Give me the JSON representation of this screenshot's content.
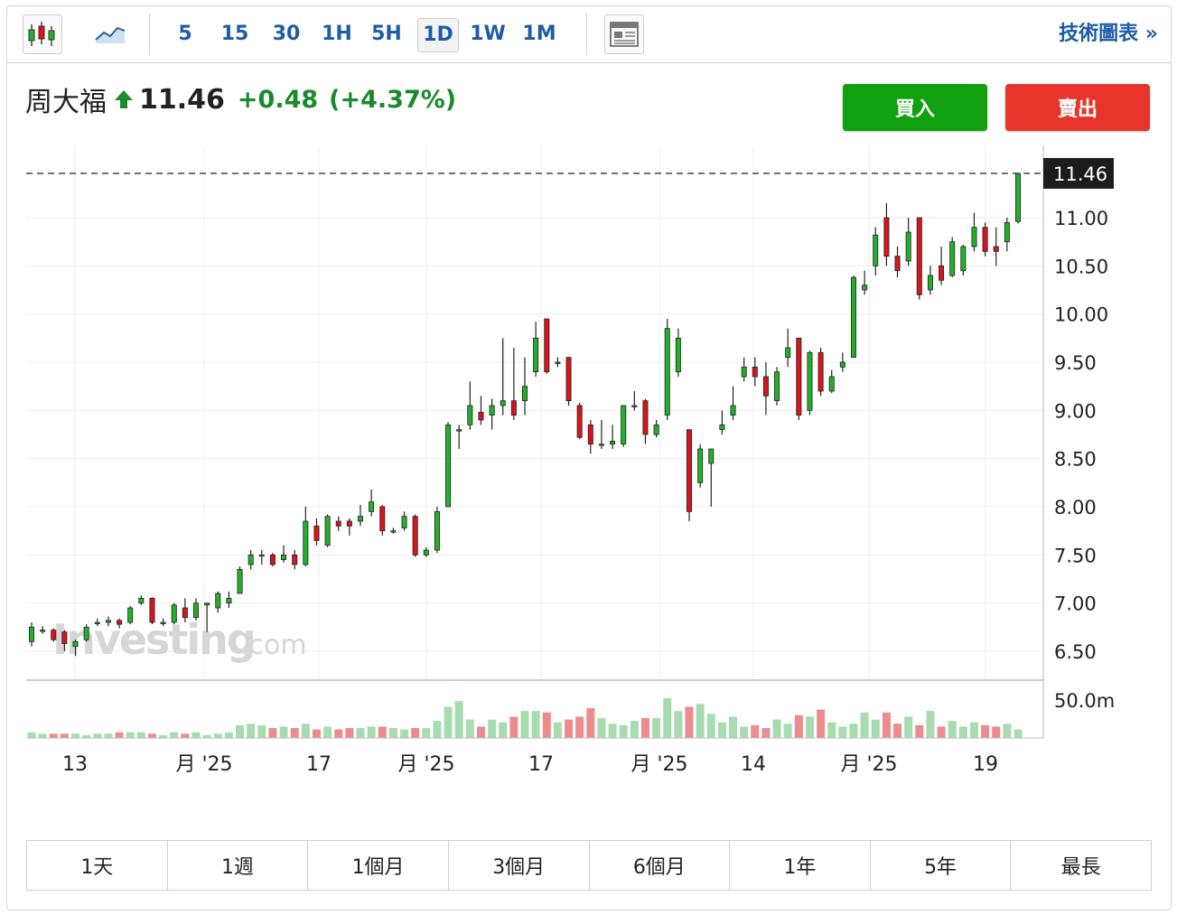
{
  "toolbar": {
    "chart_type_icons": [
      "candlestick-icon",
      "line-chart-icon"
    ],
    "intervals": [
      {
        "label": "5",
        "active": false
      },
      {
        "label": "15",
        "active": false
      },
      {
        "label": "30",
        "active": false
      },
      {
        "label": "1H",
        "active": false
      },
      {
        "label": "5H",
        "active": false
      },
      {
        "label": "1D",
        "active": true
      },
      {
        "label": "1W",
        "active": false
      },
      {
        "label": "1M",
        "active": false
      }
    ],
    "layout_icon": "news-layout-icon",
    "technical_link": "技術圖表 »"
  },
  "quote": {
    "name": "周大福",
    "direction": "up",
    "price": "11.46",
    "change": "+0.48",
    "change_pct": "(+4.37%)"
  },
  "actions": {
    "buy": "買入",
    "sell": "賣出"
  },
  "watermark": {
    "brand": "Investing",
    "suffix": ".com"
  },
  "chart_data": {
    "type": "candlestick",
    "y_ticks": [
      "11.00",
      "10.50",
      "10.00",
      "9.50",
      "9.00",
      "8.50",
      "8.00",
      "7.50",
      "7.00",
      "6.50"
    ],
    "ylim": [
      6.2,
      11.75
    ],
    "last_price_label": "11.46",
    "volume_label": "50.0m",
    "x_labels": [
      "13",
      "月 '25",
      "17",
      "月 '25",
      "17",
      "月 '25",
      "14",
      "月 '25",
      "19"
    ],
    "colors": {
      "up": "#22b02a",
      "down": "#d8141d",
      "vol_up": "#a8dcb0",
      "vol_down": "#ec8c8e"
    },
    "candles": [
      [
        6.6,
        6.75,
        6.55,
        6.8
      ],
      [
        6.72,
        6.72,
        6.68,
        6.76
      ],
      [
        6.72,
        6.62,
        6.6,
        6.74
      ],
      [
        6.7,
        6.58,
        6.5,
        6.72
      ],
      [
        6.55,
        6.6,
        6.45,
        6.62
      ],
      [
        6.62,
        6.75,
        6.6,
        6.78
      ],
      [
        6.8,
        6.8,
        6.76,
        6.84
      ],
      [
        6.8,
        6.82,
        6.76,
        6.86
      ],
      [
        6.82,
        6.78,
        6.74,
        6.84
      ],
      [
        6.8,
        6.95,
        6.78,
        6.97
      ],
      [
        7.0,
        7.05,
        6.98,
        7.08
      ],
      [
        7.05,
        6.8,
        6.78,
        7.06
      ],
      [
        6.8,
        6.8,
        6.76,
        6.84
      ],
      [
        6.8,
        6.98,
        6.78,
        7.0
      ],
      [
        6.95,
        6.85,
        6.8,
        7.05
      ],
      [
        6.85,
        7.0,
        6.82,
        7.05
      ],
      [
        6.98,
        7.0,
        6.7,
        7.0
      ],
      [
        6.95,
        7.1,
        6.9,
        7.12
      ],
      [
        7.0,
        7.05,
        6.95,
        7.12
      ],
      [
        7.1,
        7.35,
        7.1,
        7.38
      ],
      [
        7.4,
        7.5,
        7.35,
        7.55
      ],
      [
        7.5,
        7.5,
        7.4,
        7.55
      ],
      [
        7.5,
        7.4,
        7.38,
        7.52
      ],
      [
        7.45,
        7.5,
        7.42,
        7.6
      ],
      [
        7.5,
        7.4,
        7.35,
        7.55
      ],
      [
        7.4,
        7.85,
        7.38,
        8.0
      ],
      [
        7.8,
        7.65,
        7.6,
        7.88
      ],
      [
        7.6,
        7.9,
        7.58,
        7.92
      ],
      [
        7.85,
        7.8,
        7.75,
        7.9
      ],
      [
        7.85,
        7.8,
        7.7,
        7.88
      ],
      [
        7.85,
        7.9,
        7.8,
        8.02
      ],
      [
        7.95,
        8.05,
        7.9,
        8.18
      ],
      [
        8.0,
        7.75,
        7.7,
        8.02
      ],
      [
        7.75,
        7.75,
        7.72,
        7.78
      ],
      [
        7.78,
        7.9,
        7.75,
        7.95
      ],
      [
        7.9,
        7.5,
        7.48,
        7.92
      ],
      [
        7.5,
        7.55,
        7.48,
        7.58
      ],
      [
        7.55,
        7.95,
        7.52,
        8.0
      ],
      [
        8.0,
        8.85,
        8.0,
        8.88
      ],
      [
        8.8,
        8.8,
        8.6,
        8.85
      ],
      [
        8.85,
        9.05,
        8.8,
        9.3
      ],
      [
        8.98,
        8.9,
        8.85,
        9.15
      ],
      [
        8.95,
        9.05,
        8.8,
        9.12
      ],
      [
        9.05,
        9.1,
        8.95,
        9.75
      ],
      [
        9.1,
        8.95,
        8.9,
        9.65
      ],
      [
        9.1,
        9.25,
        8.95,
        9.55
      ],
      [
        9.4,
        9.75,
        9.35,
        9.92
      ],
      [
        9.95,
        9.4,
        9.38,
        9.95
      ],
      [
        9.5,
        9.5,
        9.45,
        9.55
      ],
      [
        9.55,
        9.1,
        9.05,
        9.55
      ],
      [
        9.05,
        8.72,
        8.7,
        9.08
      ],
      [
        8.85,
        8.65,
        8.55,
        8.9
      ],
      [
        8.65,
        8.65,
        8.6,
        8.9
      ],
      [
        8.65,
        8.68,
        8.6,
        8.85
      ],
      [
        8.65,
        9.05,
        8.62,
        9.05
      ],
      [
        9.05,
        9.05,
        9.0,
        9.2
      ],
      [
        9.1,
        8.75,
        8.65,
        9.12
      ],
      [
        8.75,
        8.85,
        8.72,
        8.9
      ],
      [
        8.95,
        9.85,
        8.9,
        9.95
      ],
      [
        9.4,
        9.75,
        9.35,
        9.85
      ],
      [
        8.8,
        7.95,
        7.85,
        8.8
      ],
      [
        8.25,
        8.6,
        8.2,
        8.65
      ],
      [
        8.45,
        8.6,
        8.0,
        8.6
      ],
      [
        8.8,
        8.85,
        8.75,
        9.0
      ],
      [
        8.95,
        9.05,
        8.9,
        9.25
      ],
      [
        9.35,
        9.45,
        9.3,
        9.55
      ],
      [
        9.45,
        9.35,
        9.25,
        9.55
      ],
      [
        9.35,
        9.15,
        8.95,
        9.5
      ],
      [
        9.1,
        9.4,
        9.05,
        9.45
      ],
      [
        9.55,
        9.65,
        9.45,
        9.85
      ],
      [
        9.75,
        8.95,
        8.9,
        9.75
      ],
      [
        9.0,
        9.6,
        8.95,
        9.62
      ],
      [
        9.6,
        9.2,
        9.15,
        9.65
      ],
      [
        9.2,
        9.35,
        9.18,
        9.42
      ],
      [
        9.45,
        9.5,
        9.4,
        9.6
      ],
      [
        9.55,
        10.38,
        9.55,
        10.4
      ],
      [
        10.25,
        10.3,
        10.2,
        10.45
      ],
      [
        10.5,
        10.82,
        10.4,
        10.9
      ],
      [
        11.0,
        10.6,
        10.5,
        11.15
      ],
      [
        10.6,
        10.45,
        10.38,
        10.7
      ],
      [
        10.55,
        10.85,
        10.5,
        11.0
      ],
      [
        11.0,
        10.2,
        10.15,
        11.0
      ],
      [
        10.25,
        10.4,
        10.2,
        10.5
      ],
      [
        10.5,
        10.35,
        10.3,
        10.7
      ],
      [
        10.4,
        10.75,
        10.38,
        10.8
      ],
      [
        10.45,
        10.7,
        10.4,
        10.72
      ],
      [
        10.7,
        10.9,
        10.65,
        11.05
      ],
      [
        10.9,
        10.65,
        10.6,
        10.95
      ],
      [
        10.7,
        10.65,
        10.5,
        10.9
      ],
      [
        10.75,
        10.95,
        10.65,
        11.0
      ],
      [
        10.96,
        11.46,
        10.94,
        11.46
      ]
    ],
    "volume": [
      4,
      3,
      3,
      3,
      3,
      2,
      3,
      3,
      4,
      4,
      4,
      3,
      2,
      4,
      3,
      4,
      2,
      3,
      4,
      9,
      10,
      9,
      7,
      8,
      7,
      10,
      6,
      8,
      6,
      7,
      7,
      8,
      8,
      7,
      6,
      7,
      7,
      12,
      22,
      26,
      13,
      8,
      13,
      11,
      15,
      19,
      19,
      18,
      11,
      13,
      15,
      21,
      14,
      10,
      9,
      12,
      14,
      14,
      28,
      19,
      22,
      24,
      17,
      11,
      15,
      8,
      9,
      7,
      13,
      10,
      16,
      15,
      20,
      11,
      8,
      10,
      18,
      13,
      18,
      10,
      15,
      9,
      19,
      8,
      12,
      8,
      11,
      9,
      8,
      10,
      6
    ]
  },
  "ranges": [
    "1天",
    "1週",
    "1個月",
    "3個月",
    "6個月",
    "1年",
    "5年",
    "最長"
  ]
}
